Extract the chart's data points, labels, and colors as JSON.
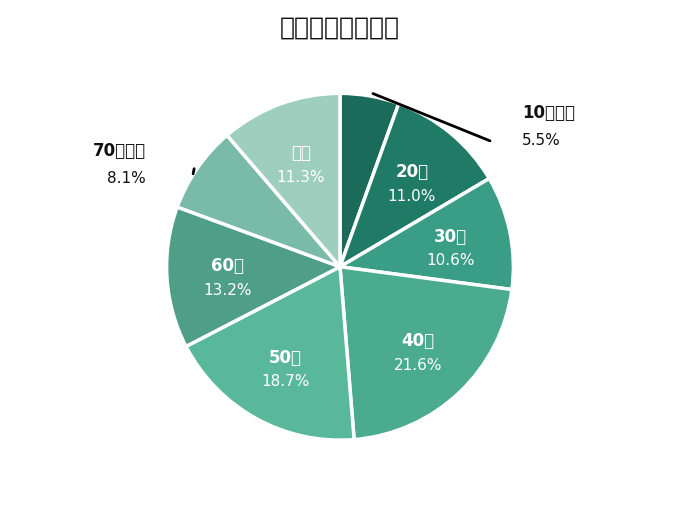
{
  "title": "顧客の年齢層分布",
  "labels": [
    "10代以下",
    "20代",
    "30代",
    "40代",
    "50代",
    "60代",
    "70代以上",
    "不明"
  ],
  "values": [
    5.5,
    11.0,
    10.6,
    21.6,
    18.7,
    13.2,
    8.1,
    11.3
  ],
  "colors_matched": [
    "#1a6b59",
    "#1f7a66",
    "#3a9e87",
    "#4aab8e",
    "#5ab89a",
    "#4f9e88",
    "#79bba8",
    "#9ecebe"
  ],
  "startangle": 90,
  "title_fontsize": 18,
  "label_fontsize": 12,
  "pct_fontsize": 11,
  "background_color": "#ffffff",
  "text_color_inside": "#ffffff",
  "text_color_outside": "#111111",
  "outside_labels": [
    "10代以下",
    "70代以上"
  ]
}
